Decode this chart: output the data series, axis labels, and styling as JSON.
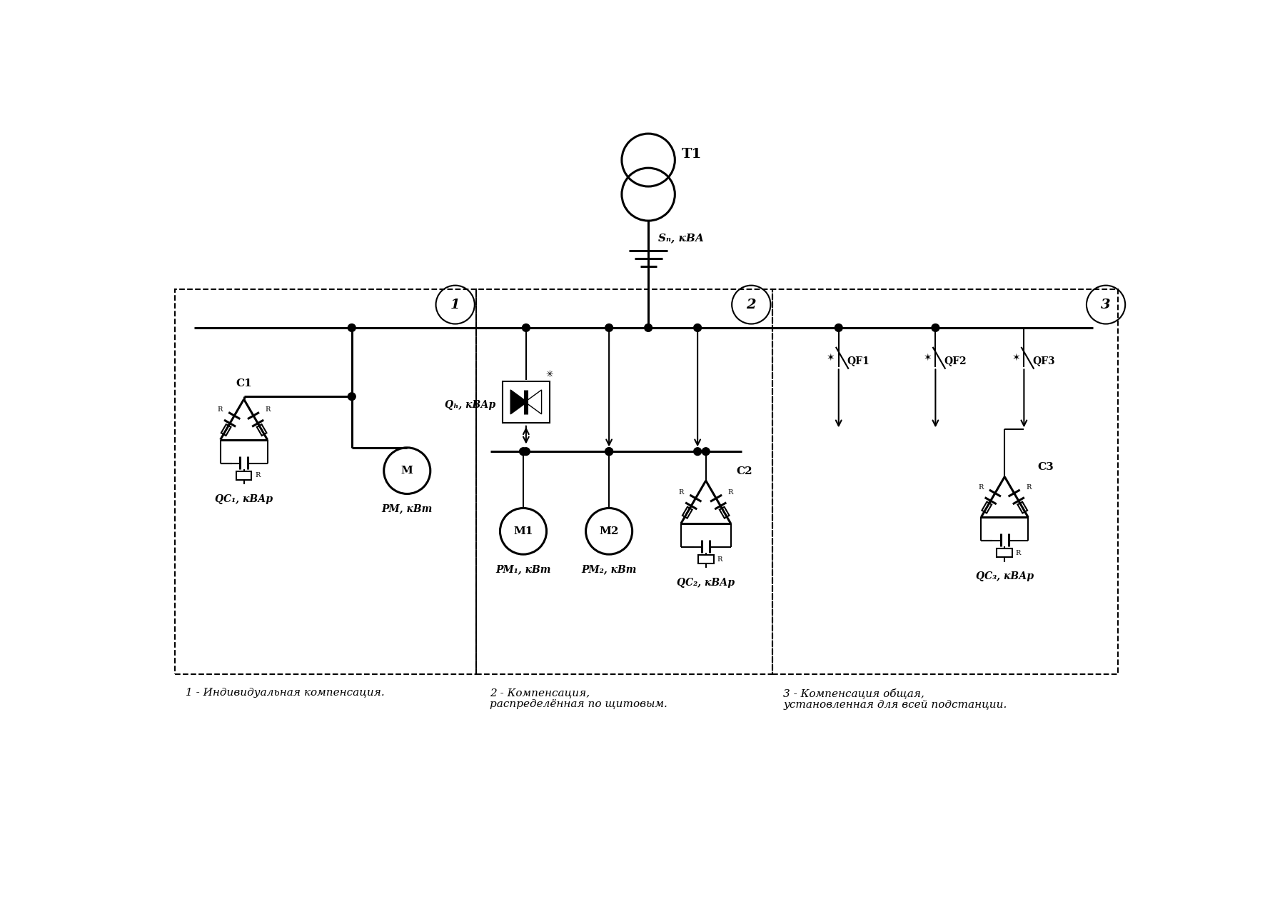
{
  "bg_color": "#ffffff",
  "label1": "1 - Индивидуальная компенсация.",
  "label2": "2 - Компенсация,\nраспределённая по щитовым.",
  "label3": "3 - Компенсация общая,\nустановленная для всей подстанции.",
  "zone1_label": "1",
  "zone2_label": "2",
  "zone3_label": "3",
  "T1_label": "T1",
  "Sn_label": "Sₙ, кВА",
  "Qh_label": "Qₕ, кВАр",
  "C1_label": "C1",
  "C2_label": "C2",
  "C3_label": "C3",
  "QC1_label": "QС₁, кВАр",
  "QC2_label": "QС₂, кВАр",
  "QC3_label": "QС₃, кВАр",
  "PM_label": "PМ, кВт",
  "PM1_label": "PМ₁, кВт",
  "PM2_label": "PМ₂, кВт",
  "QF1_label": "QF1",
  "QF2_label": "QF2",
  "QF3_label": "QF3",
  "M_label": "М",
  "M1_label": "М1",
  "M2_label": "М2"
}
